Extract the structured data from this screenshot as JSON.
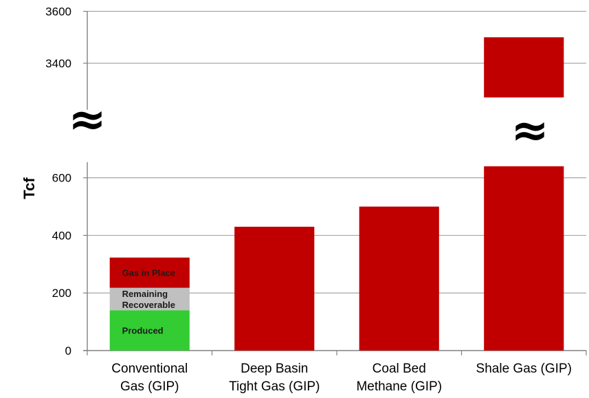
{
  "chart_data": {
    "type": "bar",
    "ylabel": "Tcf",
    "axis_break": {
      "lower_range": [
        0,
        640
      ],
      "upper_range": [
        3300,
        3600
      ],
      "symbol": "≈"
    },
    "yticks_lower": [
      "0",
      "200",
      "400",
      "600"
    ],
    "yticks_upper": [
      "3400",
      "3600"
    ],
    "categories": [
      [
        "Conventional",
        "Gas (GIP)"
      ],
      [
        "Deep Basin",
        "Tight Gas (GIP)"
      ],
      [
        "Coal Bed",
        "Methane (GIP)"
      ],
      [
        "Shale Gas (GIP)"
      ]
    ],
    "values": [
      323,
      430,
      500,
      3500
    ],
    "stacked_first_bar": [
      {
        "name": "Produced",
        "value": 140,
        "color": "#33cc33"
      },
      {
        "name": "Remaining Recoverable",
        "label_lines": [
          "Remaining",
          "Recoverable"
        ],
        "value": 78,
        "color": "#c0c0c0"
      },
      {
        "name": "Gas in Place",
        "value": 105,
        "color": "#c00000"
      }
    ],
    "bar_color": "#c00000",
    "grid": true
  }
}
